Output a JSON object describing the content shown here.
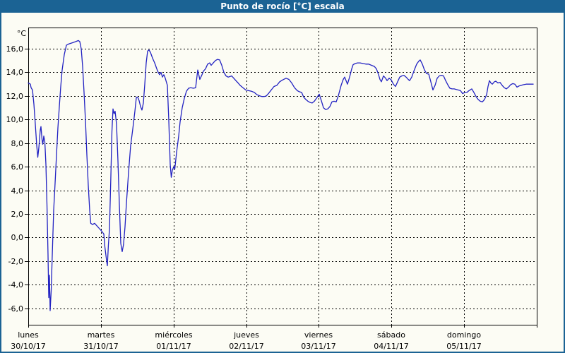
{
  "window": {
    "title": "Punto de rocío [°C] escala"
  },
  "colors": {
    "frame": "#1b6394",
    "title_text": "#ffffff",
    "background": "#fcfcf4",
    "plot_border": "#000000",
    "grid": "#000000",
    "tick_text": "#000000",
    "series_line": "#2222c2"
  },
  "chart_data": {
    "type": "line",
    "title": "Punto de rocío [°C] escala",
    "ylabel": "°C",
    "decimal_separator": ",",
    "grid": "dashed",
    "legend": "none",
    "y_ticks": [
      16,
      14,
      12,
      10,
      8,
      6,
      4,
      2,
      0,
      -2,
      -4,
      -6
    ],
    "ylim": [
      -7.4,
      17.8
    ],
    "x_axis": {
      "unit": "days",
      "range_days": [
        0,
        7
      ],
      "days": [
        {
          "name": "lunes",
          "date": "30/10/17"
        },
        {
          "name": "martes",
          "date": "31/10/17"
        },
        {
          "name": "miércoles",
          "date": "01/11/17"
        },
        {
          "name": "jueves",
          "date": "02/11/17"
        },
        {
          "name": "viernes",
          "date": "03/11/17"
        },
        {
          "name": "sábado",
          "date": "04/11/17"
        },
        {
          "name": "domingo",
          "date": "05/11/17"
        }
      ]
    },
    "series": [
      {
        "name": "Punto de rocío [°C]",
        "color": "#2222c2",
        "points": [
          [
            0.0,
            13.1
          ],
          [
            0.029,
            13.0
          ],
          [
            0.039,
            12.7
          ],
          [
            0.058,
            12.5
          ],
          [
            0.078,
            11.3
          ],
          [
            0.097,
            9.6
          ],
          [
            0.117,
            7.8
          ],
          [
            0.131,
            6.8
          ],
          [
            0.146,
            7.6
          ],
          [
            0.165,
            9.1
          ],
          [
            0.175,
            9.4
          ],
          [
            0.19,
            8.3
          ],
          [
            0.199,
            7.9
          ],
          [
            0.214,
            8.6
          ],
          [
            0.228,
            8.1
          ],
          [
            0.243,
            6.2
          ],
          [
            0.258,
            2.8
          ],
          [
            0.272,
            -1.5
          ],
          [
            0.282,
            -5.1
          ],
          [
            0.292,
            -3.2
          ],
          [
            0.301,
            -6.2
          ],
          [
            0.316,
            -4.5
          ],
          [
            0.331,
            -1.5
          ],
          [
            0.35,
            2.3
          ],
          [
            0.369,
            4.6
          ],
          [
            0.389,
            7.0
          ],
          [
            0.408,
            9.3
          ],
          [
            0.428,
            11.1
          ],
          [
            0.447,
            12.8
          ],
          [
            0.467,
            14.2
          ],
          [
            0.496,
            15.5
          ],
          [
            0.525,
            16.3
          ],
          [
            0.554,
            16.4
          ],
          [
            0.603,
            16.5
          ],
          [
            0.651,
            16.6
          ],
          [
            0.69,
            16.7
          ],
          [
            0.71,
            16.6
          ],
          [
            0.729,
            16.0
          ],
          [
            0.749,
            14.5
          ],
          [
            0.768,
            12.3
          ],
          [
            0.788,
            9.8
          ],
          [
            0.807,
            7.0
          ],
          [
            0.826,
            4.4
          ],
          [
            0.846,
            2.3
          ],
          [
            0.86,
            1.2
          ],
          [
            0.885,
            1.1
          ],
          [
            0.914,
            1.2
          ],
          [
            0.943,
            1.0
          ],
          [
            0.972,
            0.8
          ],
          [
            1.001,
            0.6
          ],
          [
            1.04,
            0.3
          ],
          [
            1.055,
            -0.8
          ],
          [
            1.079,
            -2.0
          ],
          [
            1.089,
            -2.4
          ],
          [
            1.103,
            -0.6
          ],
          [
            1.118,
            0.7
          ],
          [
            1.137,
            5.0
          ],
          [
            1.152,
            9.0
          ],
          [
            1.167,
            10.9
          ],
          [
            1.181,
            10.5
          ],
          [
            1.196,
            10.7
          ],
          [
            1.215,
            9.6
          ],
          [
            1.235,
            6.5
          ],
          [
            1.254,
            2.8
          ],
          [
            1.274,
            -0.5
          ],
          [
            1.293,
            -1.2
          ],
          [
            1.312,
            -0.6
          ],
          [
            1.332,
            0.9
          ],
          [
            1.351,
            2.9
          ],
          [
            1.381,
            5.5
          ],
          [
            1.41,
            7.8
          ],
          [
            1.439,
            9.2
          ],
          [
            1.468,
            10.7
          ],
          [
            1.488,
            11.9
          ],
          [
            1.507,
            11.9
          ],
          [
            1.526,
            11.6
          ],
          [
            1.546,
            11.1
          ],
          [
            1.565,
            10.8
          ],
          [
            1.585,
            11.4
          ],
          [
            1.604,
            13.0
          ],
          [
            1.624,
            14.8
          ],
          [
            1.643,
            15.8
          ],
          [
            1.662,
            15.9
          ],
          [
            1.682,
            15.7
          ],
          [
            1.711,
            15.2
          ],
          [
            1.74,
            14.8
          ],
          [
            1.769,
            14.3
          ],
          [
            1.789,
            14.0
          ],
          [
            1.808,
            13.8
          ],
          [
            1.828,
            14.0
          ],
          [
            1.847,
            13.6
          ],
          [
            1.867,
            13.8
          ],
          [
            1.886,
            13.5
          ],
          [
            1.915,
            12.9
          ],
          [
            1.935,
            9.9
          ],
          [
            1.954,
            6.2
          ],
          [
            1.969,
            5.1
          ],
          [
            1.983,
            5.7
          ],
          [
            2.003,
            6.0
          ],
          [
            2.017,
            5.8
          ],
          [
            2.042,
            7.2
          ],
          [
            2.071,
            8.6
          ],
          [
            2.09,
            9.8
          ],
          [
            2.119,
            11.0
          ],
          [
            2.149,
            11.8
          ],
          [
            2.178,
            12.4
          ],
          [
            2.207,
            12.65
          ],
          [
            2.236,
            12.7
          ],
          [
            2.275,
            12.65
          ],
          [
            2.304,
            12.7
          ],
          [
            2.333,
            14.2
          ],
          [
            2.362,
            13.4
          ],
          [
            2.392,
            13.8
          ],
          [
            2.411,
            14.1
          ],
          [
            2.44,
            14.3
          ],
          [
            2.469,
            14.7
          ],
          [
            2.499,
            14.8
          ],
          [
            2.518,
            14.6
          ],
          [
            2.547,
            14.8
          ],
          [
            2.576,
            15.0
          ],
          [
            2.606,
            15.1
          ],
          [
            2.635,
            15.05
          ],
          [
            2.664,
            14.6
          ],
          [
            2.693,
            14.0
          ],
          [
            2.722,
            13.7
          ],
          [
            2.751,
            13.6
          ],
          [
            2.781,
            13.65
          ],
          [
            2.8,
            13.7
          ],
          [
            2.829,
            13.5
          ],
          [
            2.858,
            13.3
          ],
          [
            2.888,
            13.1
          ],
          [
            2.917,
            12.9
          ],
          [
            2.956,
            12.7
          ],
          [
            2.995,
            12.5
          ],
          [
            3.033,
            12.45
          ],
          [
            3.072,
            12.4
          ],
          [
            3.111,
            12.3
          ],
          [
            3.15,
            12.1
          ],
          [
            3.189,
            12.0
          ],
          [
            3.218,
            11.95
          ],
          [
            3.247,
            11.95
          ],
          [
            3.276,
            12.0
          ],
          [
            3.306,
            12.2
          ],
          [
            3.344,
            12.5
          ],
          [
            3.383,
            12.8
          ],
          [
            3.422,
            12.9
          ],
          [
            3.461,
            13.2
          ],
          [
            3.5,
            13.35
          ],
          [
            3.549,
            13.5
          ],
          [
            3.588,
            13.4
          ],
          [
            3.626,
            13.1
          ],
          [
            3.665,
            12.7
          ],
          [
            3.704,
            12.45
          ],
          [
            3.733,
            12.35
          ],
          [
            3.763,
            12.3
          ],
          [
            3.792,
            11.9
          ],
          [
            3.821,
            11.7
          ],
          [
            3.85,
            11.55
          ],
          [
            3.879,
            11.45
          ],
          [
            3.908,
            11.4
          ],
          [
            3.938,
            11.55
          ],
          [
            3.967,
            11.8
          ],
          [
            4.006,
            12.15
          ],
          [
            4.035,
            11.6
          ],
          [
            4.064,
            11.0
          ],
          [
            4.093,
            10.85
          ],
          [
            4.122,
            10.9
          ],
          [
            4.152,
            11.1
          ],
          [
            4.181,
            11.5
          ],
          [
            4.21,
            11.55
          ],
          [
            4.239,
            11.5
          ],
          [
            4.268,
            12.0
          ],
          [
            4.307,
            12.9
          ],
          [
            4.336,
            13.4
          ],
          [
            4.356,
            13.6
          ],
          [
            4.375,
            13.3
          ],
          [
            4.394,
            13.0
          ],
          [
            4.424,
            13.6
          ],
          [
            4.453,
            14.3
          ],
          [
            4.472,
            14.65
          ],
          [
            4.501,
            14.75
          ],
          [
            4.531,
            14.8
          ],
          [
            4.569,
            14.8
          ],
          [
            4.608,
            14.75
          ],
          [
            4.647,
            14.7
          ],
          [
            4.686,
            14.7
          ],
          [
            4.725,
            14.6
          ],
          [
            4.764,
            14.5
          ],
          [
            4.793,
            14.3
          ],
          [
            4.822,
            13.8
          ],
          [
            4.842,
            13.4
          ],
          [
            4.861,
            13.2
          ],
          [
            4.89,
            13.7
          ],
          [
            4.919,
            13.5
          ],
          [
            4.939,
            13.3
          ],
          [
            4.968,
            13.5
          ],
          [
            4.997,
            13.35
          ],
          [
            5.026,
            13.0
          ],
          [
            5.056,
            12.8
          ],
          [
            5.085,
            13.2
          ],
          [
            5.114,
            13.6
          ],
          [
            5.143,
            13.7
          ],
          [
            5.172,
            13.75
          ],
          [
            5.201,
            13.6
          ],
          [
            5.231,
            13.4
          ],
          [
            5.25,
            13.3
          ],
          [
            5.279,
            13.6
          ],
          [
            5.308,
            14.1
          ],
          [
            5.347,
            14.7
          ],
          [
            5.376,
            14.95
          ],
          [
            5.396,
            15.05
          ],
          [
            5.425,
            14.7
          ],
          [
            5.454,
            14.2
          ],
          [
            5.483,
            13.9
          ],
          [
            5.513,
            13.85
          ],
          [
            5.542,
            13.2
          ],
          [
            5.571,
            12.5
          ],
          [
            5.6,
            12.9
          ],
          [
            5.629,
            13.5
          ],
          [
            5.658,
            13.7
          ],
          [
            5.688,
            13.75
          ],
          [
            5.717,
            13.7
          ],
          [
            5.746,
            13.3
          ],
          [
            5.775,
            12.95
          ],
          [
            5.804,
            12.65
          ],
          [
            5.833,
            12.6
          ],
          [
            5.863,
            12.6
          ],
          [
            5.892,
            12.55
          ],
          [
            5.921,
            12.5
          ],
          [
            5.95,
            12.45
          ],
          [
            5.979,
            12.2
          ],
          [
            6.008,
            12.3
          ],
          [
            6.038,
            12.3
          ],
          [
            6.067,
            12.45
          ],
          [
            6.106,
            12.6
          ],
          [
            6.135,
            12.3
          ],
          [
            6.164,
            11.95
          ],
          [
            6.193,
            11.7
          ],
          [
            6.222,
            11.55
          ],
          [
            6.251,
            11.5
          ],
          [
            6.281,
            11.7
          ],
          [
            6.31,
            12.1
          ],
          [
            6.329,
            12.8
          ],
          [
            6.349,
            13.3
          ],
          [
            6.368,
            13.1
          ],
          [
            6.388,
            13.0
          ],
          [
            6.417,
            13.2
          ],
          [
            6.436,
            13.25
          ],
          [
            6.465,
            13.1
          ],
          [
            6.494,
            13.15
          ],
          [
            6.524,
            12.9
          ],
          [
            6.553,
            12.7
          ],
          [
            6.582,
            12.6
          ],
          [
            6.611,
            12.75
          ],
          [
            6.64,
            12.95
          ],
          [
            6.669,
            13.05
          ],
          [
            6.699,
            13.0
          ],
          [
            6.728,
            12.75
          ],
          [
            6.757,
            12.85
          ],
          [
            6.786,
            12.9
          ],
          [
            6.815,
            12.95
          ],
          [
            6.854,
            13.0
          ],
          [
            6.903,
            13.0
          ],
          [
            6.951,
            13.0
          ]
        ]
      }
    ]
  }
}
